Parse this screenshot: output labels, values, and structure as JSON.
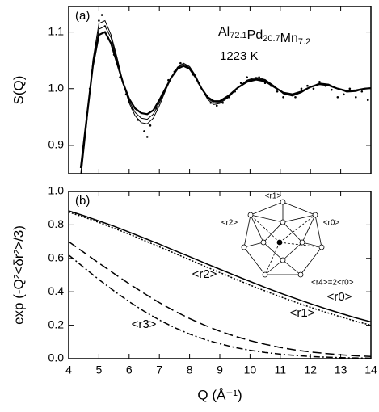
{
  "chart_data": [
    {
      "type": "line",
      "panel_label": "(a)",
      "formula": [
        {
          "text": "Al",
          "sub": "72.1"
        },
        {
          "text": "Pd",
          "sub": "20.7"
        },
        {
          "text": "Mn",
          "sub": "7.2"
        }
      ],
      "temperature": "1223 K",
      "y_label": "S(Q)",
      "x": [
        4.4,
        4.6,
        4.8,
        5.0,
        5.2,
        5.4,
        5.6,
        5.8,
        6.0,
        6.2,
        6.4,
        6.6,
        6.8,
        7.0,
        7.2,
        7.4,
        7.6,
        7.8,
        8.0,
        8.2,
        8.4,
        8.6,
        8.8,
        9.0,
        9.3,
        9.6,
        9.9,
        10.2,
        10.5,
        10.8,
        11.1,
        11.4,
        11.7,
        12.0,
        12.3,
        12.6,
        12.9,
        13.2,
        13.5,
        13.8,
        14.0
      ],
      "series": [
        {
          "color": "#000000",
          "width": 2.2,
          "values": [
            0.86,
            0.95,
            1.04,
            1.095,
            1.1,
            1.08,
            1.045,
            1.01,
            0.982,
            0.965,
            0.957,
            0.955,
            0.962,
            0.98,
            1.0,
            1.02,
            1.035,
            1.04,
            1.035,
            1.02,
            1.0,
            0.985,
            0.978,
            0.978,
            0.988,
            1.002,
            1.012,
            1.016,
            1.013,
            1.003,
            0.993,
            0.99,
            0.995,
            1.003,
            1.008,
            1.006,
            1.0,
            0.996,
            0.997,
            1.0,
            1.001
          ]
        },
        {
          "color": "#000000",
          "width": 1,
          "values": [
            0.85,
            0.945,
            1.045,
            1.105,
            1.11,
            1.09,
            1.05,
            1.01,
            0.978,
            0.958,
            0.948,
            0.946,
            0.955,
            0.975,
            0.998,
            1.02,
            1.037,
            1.043,
            1.037,
            1.022,
            1.0,
            0.983,
            0.975,
            0.976,
            0.986,
            1.002,
            1.014,
            1.018,
            1.015,
            1.004,
            0.992,
            0.988,
            0.994,
            1.003,
            1.009,
            1.007,
            1.0,
            0.995,
            0.996,
            1.0,
            1.001
          ]
        },
        {
          "color": "#000000",
          "width": 1,
          "values": [
            0.84,
            0.94,
            1.05,
            1.115,
            1.12,
            1.095,
            1.055,
            1.01,
            0.975,
            0.952,
            0.94,
            0.938,
            0.948,
            0.97,
            0.996,
            1.02,
            1.038,
            1.045,
            1.039,
            1.023,
            1.0,
            0.981,
            0.972,
            0.974,
            0.985,
            1.002,
            1.015,
            1.02,
            1.016,
            1.005,
            0.991,
            0.987,
            0.993,
            1.003,
            1.01,
            1.008,
            1.0,
            0.994,
            0.995,
            1.0,
            1.001
          ]
        },
        {
          "color": "#000000",
          "marker": "dot",
          "x": [
            4.5,
            4.7,
            4.9,
            5.0,
            5.1,
            5.2,
            5.3,
            5.5,
            5.7,
            5.9,
            6.1,
            6.3,
            6.5,
            6.6,
            6.7,
            6.9,
            7.1,
            7.3,
            7.5,
            7.7,
            7.9,
            8.1,
            8.3,
            8.5,
            8.7,
            8.9,
            9.1,
            9.3,
            9.5,
            9.7,
            9.9,
            10.1,
            10.3,
            10.5,
            10.7,
            10.9,
            11.1,
            11.3,
            11.5,
            11.7,
            11.9,
            12.1,
            12.3,
            12.5,
            12.7,
            12.9,
            13.1,
            13.3,
            13.5,
            13.7,
            13.9
          ],
          "values": [
            0.9,
            1.0,
            1.08,
            1.12,
            1.13,
            1.11,
            1.09,
            1.06,
            1.02,
            0.99,
            0.965,
            0.945,
            0.925,
            0.915,
            0.935,
            0.965,
            0.99,
            1.015,
            1.03,
            1.045,
            1.04,
            1.025,
            1.01,
            0.99,
            0.975,
            0.97,
            0.975,
            0.985,
            0.995,
            1.01,
            1.02,
            1.015,
            1.02,
            1.01,
            1.005,
            0.995,
            0.985,
            0.99,
            0.985,
            1.0,
            1.005,
            1.0,
            1.012,
            1.005,
            0.998,
            0.985,
            0.99,
            1.0,
            0.985,
            0.995,
            0.98
          ]
        }
      ],
      "xlim": [
        4,
        14
      ],
      "xticks": [
        4,
        5,
        6,
        7,
        8,
        9,
        10,
        11,
        12,
        13,
        14
      ],
      "ylim": [
        0.85,
        1.145
      ],
      "yticks": [
        0.9,
        {
          "value": 1,
          "label": "1.0"
        },
        1.1
      ]
    },
    {
      "type": "line",
      "panel_label": "(b)",
      "y_label": "exp (-Q²<δr²>/3)",
      "x_label": "Q (Å⁻¹)",
      "x": [
        4,
        4.5,
        5,
        5.5,
        6,
        6.5,
        7,
        7.5,
        8,
        8.5,
        9,
        9.5,
        10,
        10.5,
        11,
        11.5,
        12,
        12.5,
        13,
        13.5,
        14
      ],
      "series": [
        {
          "name": "<r0>",
          "color": "#000000",
          "dash": "none",
          "values": [
            0.884,
            0.855,
            0.824,
            0.792,
            0.757,
            0.721,
            0.685,
            0.647,
            0.61,
            0.572,
            0.535,
            0.498,
            0.462,
            0.426,
            0.392,
            0.36,
            0.329,
            0.299,
            0.271,
            0.244,
            0.22
          ]
        },
        {
          "name": "<r1>",
          "color": "#000000",
          "dash": "2,2",
          "values": [
            0.877,
            0.847,
            0.815,
            0.78,
            0.745,
            0.707,
            0.669,
            0.631,
            0.592,
            0.553,
            0.515,
            0.477,
            0.44,
            0.405,
            0.371,
            0.338,
            0.307,
            0.278,
            0.25,
            0.224,
            0.2
          ]
        },
        {
          "name": "<r2>",
          "color": "#000000",
          "dash": "11,5",
          "values": [
            0.7,
            0.636,
            0.572,
            0.509,
            0.448,
            0.39,
            0.335,
            0.285,
            0.24,
            0.2,
            0.164,
            0.134,
            0.108,
            0.086,
            0.067,
            0.052,
            0.04,
            0.031,
            0.023,
            0.017,
            0.013
          ]
        },
        {
          "name": "<r3>",
          "color": "#000000",
          "dash": "8,3,2,3",
          "values": [
            0.62,
            0.546,
            0.473,
            0.405,
            0.341,
            0.283,
            0.231,
            0.186,
            0.147,
            0.115,
            0.089,
            0.067,
            0.05,
            0.037,
            0.027,
            0.019,
            0.013,
            0.009,
            0.006,
            0.004,
            0.003
          ]
        }
      ],
      "inset_labels": [
        "<r1>",
        "<r2>",
        "<r0>",
        "<r4>=2<r0>"
      ],
      "xlim": [
        4,
        14
      ],
      "xticks": [
        4,
        5,
        6,
        7,
        8,
        9,
        10,
        11,
        12,
        13,
        14
      ],
      "ylim": [
        0,
        1
      ],
      "yticks": [
        {
          "value": 0,
          "label": "0.0"
        },
        0.2,
        0.4,
        0.6,
        0.8,
        {
          "value": 1,
          "label": "1.0"
        }
      ]
    }
  ]
}
